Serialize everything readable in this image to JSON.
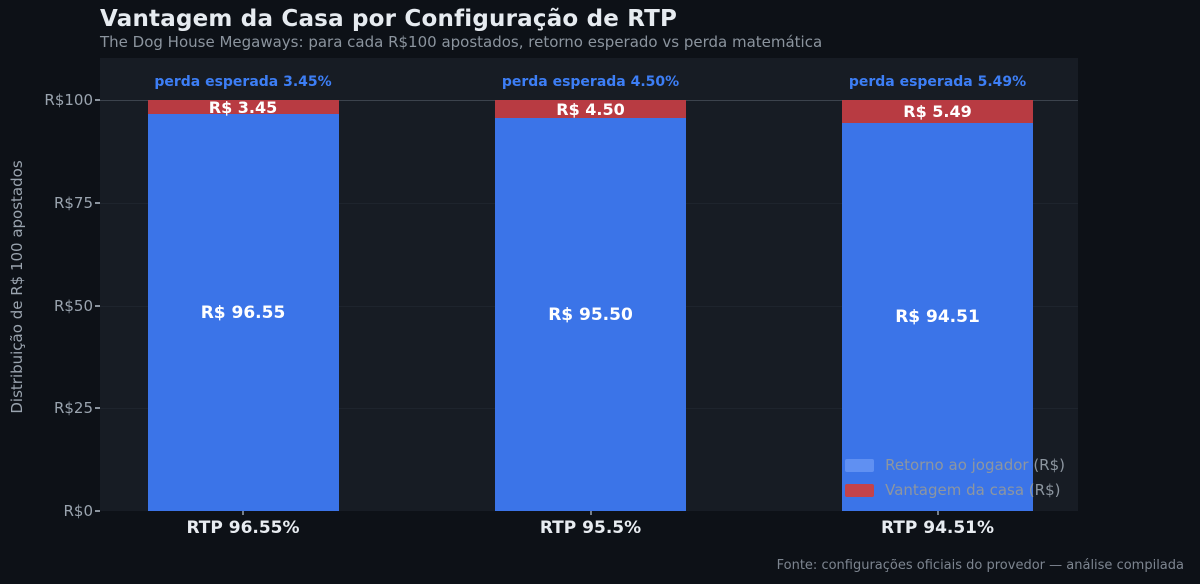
{
  "header": {
    "title": "Vantagem da Casa por Configuração de RTP",
    "subtitle": "The Dog House Megaways: para cada R$100 apostados, retorno esperado vs perda matemática"
  },
  "footer": {
    "source": "Fonte: configurações oficiais do provedor — análise compilada"
  },
  "chart_data": {
    "type": "bar",
    "stacked": true,
    "title": "Vantagem da Casa por Configuração de RTP",
    "subtitle": "The Dog House Megaways: para cada R$100 apostados, retorno esperado vs perda matemática",
    "xlabel": "",
    "ylabel": "Distribuição de R$ 100 apostados",
    "ylim": [
      0,
      100
    ],
    "grid": true,
    "background_color": "#0d1117",
    "plot_background_color": "#171c24",
    "categories": [
      "RTP 96.55%",
      "RTP 95.5%",
      "RTP 94.51%"
    ],
    "yticks": [
      {
        "label": "R$100",
        "value": 100
      },
      {
        "label": "R$75",
        "value": 75
      },
      {
        "label": "R$50",
        "value": 50
      },
      {
        "label": "R$25",
        "value": 25
      },
      {
        "label": "R$0",
        "value": 0
      }
    ],
    "series": [
      {
        "name": "Retorno ao jogador (R$)",
        "color": "#3b74e8",
        "values": [
          96.55,
          95.5,
          94.51
        ],
        "value_labels": [
          "R$ 96.55",
          "R$ 95.50",
          "R$ 94.51"
        ]
      },
      {
        "name": "Vantagem da casa (R$)",
        "color": "#b83b42",
        "values": [
          3.45,
          4.5,
          5.49
        ],
        "value_labels": [
          "R$ 3.45",
          "R$ 4.50",
          "R$ 5.49"
        ]
      }
    ],
    "annotations": [
      "perda esperada 3.45%",
      "perda esperada 4.50%",
      "perda esperada 5.49%"
    ],
    "annotation_color": "#3d7ef5",
    "legend": {
      "position": "lower right",
      "items": [
        {
          "label": "Retorno ao jogador (R$)",
          "color": "#6090f2"
        },
        {
          "label": "Vantagem da casa (R$)",
          "color": "#c4434a"
        }
      ]
    }
  }
}
